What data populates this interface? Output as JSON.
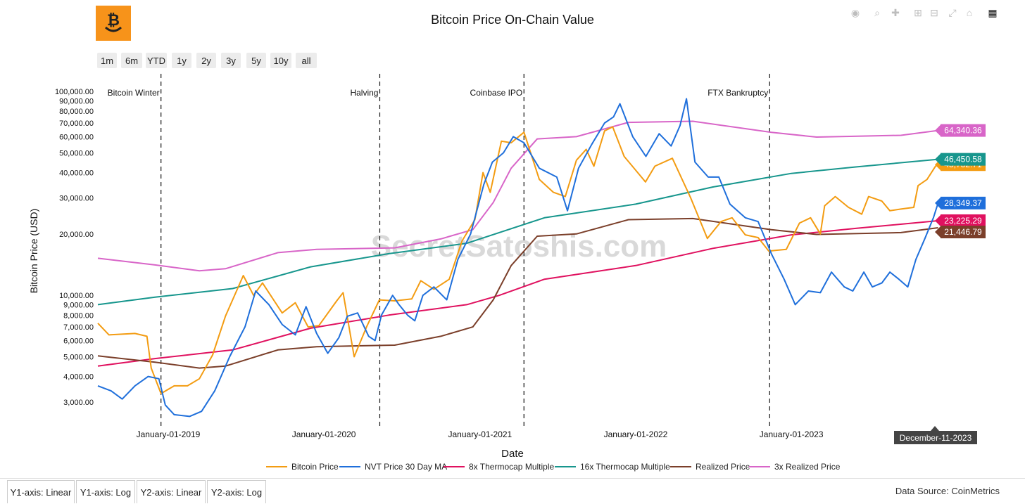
{
  "title": "Bitcoin Price On-Chain Value",
  "watermark": "SecretSatoshis.com",
  "range_buttons": [
    "1m",
    "6m",
    "YTD",
    "1y",
    "2y",
    "3y",
    "5y",
    "10y",
    "all"
  ],
  "yaxis_tabs": [
    "Y1-axis: Linear",
    "Y1-axis: Log",
    "Y2-axis: Linear",
    "Y2-axis: Log"
  ],
  "data_source": "Data Source: CoinMetrics",
  "hover_date": "December-11-2023",
  "colors": {
    "Bitcoin Price": "#f39c12",
    "NVT Price 30 Day MA": "#1f6fdb",
    "8x Thermocap Multiple": "#e0115f",
    "16x Thermocap Multiple": "#17968d",
    "Realized Price": "#7b3f2a",
    "3x Realized Price": "#d865c8"
  },
  "chart_data": {
    "type": "line",
    "title": "Bitcoin Price On-Chain Value",
    "xlabel": "Date",
    "ylabel": "Bitcoin Price (USD)",
    "yscale": "log",
    "xlim": [
      "2018-07-15",
      "2023-12-20"
    ],
    "ylim": [
      2400,
      110000
    ],
    "x_ticks": [
      "January-01-2019",
      "January-01-2020",
      "January-01-2021",
      "January-01-2022",
      "January-01-2023"
    ],
    "y_ticks": [
      "3,000.00",
      "4,000.00",
      "5,000.00",
      "6,000.00",
      "7,000.00",
      "8,000.00",
      "9,000.00",
      "10,000.00",
      "20,000.00",
      "30,000.00",
      "40,000.00",
      "50,000.00",
      "60,000.00",
      "70,000.00",
      "80,000.00",
      "90,000.00",
      "100,000.00"
    ],
    "events": [
      {
        "date": "2018-12-15",
        "label": "Bitcoin Winter"
      },
      {
        "date": "2020-05-11",
        "label": "Halving"
      },
      {
        "date": "2021-04-14",
        "label": "Coinbase IPO"
      },
      {
        "date": "2022-11-11",
        "label": "FTX Bankruptcy"
      }
    ],
    "series": [
      {
        "name": "Bitcoin Price",
        "last_value": "43,732.71",
        "points": [
          [
            "2018-07-20",
            7300
          ],
          [
            "2018-08-15",
            6400
          ],
          [
            "2018-10-15",
            6500
          ],
          [
            "2018-11-12",
            6300
          ],
          [
            "2018-11-22",
            4400
          ],
          [
            "2018-12-15",
            3300
          ],
          [
            "2019-01-15",
            3600
          ],
          [
            "2019-02-15",
            3600
          ],
          [
            "2019-03-15",
            3900
          ],
          [
            "2019-04-15",
            5100
          ],
          [
            "2019-05-15",
            7900
          ],
          [
            "2019-06-26",
            12500
          ],
          [
            "2019-07-20",
            10000
          ],
          [
            "2019-08-10",
            11500
          ],
          [
            "2019-09-25",
            8200
          ],
          [
            "2019-10-26",
            9200
          ],
          [
            "2019-11-25",
            7000
          ],
          [
            "2019-12-20",
            7100
          ],
          [
            "2020-01-31",
            9400
          ],
          [
            "2020-02-15",
            10300
          ],
          [
            "2020-03-12",
            5000
          ],
          [
            "2020-04-10",
            7000
          ],
          [
            "2020-05-10",
            9500
          ],
          [
            "2020-06-15",
            9400
          ],
          [
            "2020-07-25",
            9600
          ],
          [
            "2020-08-15",
            11800
          ],
          [
            "2020-09-15",
            10700
          ],
          [
            "2020-10-21",
            12000
          ],
          [
            "2020-11-20",
            18500
          ],
          [
            "2020-12-20",
            23500
          ],
          [
            "2021-01-08",
            40000
          ],
          [
            "2021-01-25",
            32000
          ],
          [
            "2021-02-20",
            57000
          ],
          [
            "2021-03-15",
            56000
          ],
          [
            "2021-04-14",
            63000
          ],
          [
            "2021-05-20",
            37000
          ],
          [
            "2021-06-22",
            32000
          ],
          [
            "2021-07-20",
            30500
          ],
          [
            "2021-08-15",
            46000
          ],
          [
            "2021-09-07",
            52000
          ],
          [
            "2021-09-25",
            43000
          ],
          [
            "2021-10-20",
            64000
          ],
          [
            "2021-11-08",
            67000
          ],
          [
            "2021-12-05",
            48000
          ],
          [
            "2022-01-24",
            36000
          ],
          [
            "2022-02-15",
            43000
          ],
          [
            "2022-03-28",
            47000
          ],
          [
            "2022-05-10",
            30000
          ],
          [
            "2022-06-18",
            19000
          ],
          [
            "2022-07-20",
            23000
          ],
          [
            "2022-08-15",
            24000
          ],
          [
            "2022-09-15",
            19800
          ],
          [
            "2022-10-15",
            19200
          ],
          [
            "2022-11-09",
            16500
          ],
          [
            "2022-12-20",
            16800
          ],
          [
            "2023-01-20",
            22600
          ],
          [
            "2023-02-15",
            24000
          ],
          [
            "2023-03-10",
            20000
          ],
          [
            "2023-03-20",
            27500
          ],
          [
            "2023-04-14",
            30500
          ],
          [
            "2023-05-15",
            27000
          ],
          [
            "2023-06-15",
            25000
          ],
          [
            "2023-07-01",
            30500
          ],
          [
            "2023-08-01",
            29000
          ],
          [
            "2023-08-20",
            26000
          ],
          [
            "2023-09-15",
            26500
          ],
          [
            "2023-10-15",
            27000
          ],
          [
            "2023-10-25",
            34500
          ],
          [
            "2023-11-15",
            37000
          ],
          [
            "2023-12-05",
            43000
          ],
          [
            "2023-12-11",
            43732.71
          ]
        ]
      },
      {
        "name": "NVT Price 30 Day MA",
        "last_value": "28,349.37",
        "points": [
          [
            "2018-07-20",
            3600
          ],
          [
            "2018-08-20",
            3400
          ],
          [
            "2018-09-15",
            3100
          ],
          [
            "2018-10-15",
            3600
          ],
          [
            "2018-11-15",
            4000
          ],
          [
            "2018-12-10",
            3900
          ],
          [
            "2018-12-25",
            2900
          ],
          [
            "2019-01-15",
            2600
          ],
          [
            "2019-02-20",
            2550
          ],
          [
            "2019-03-20",
            2700
          ],
          [
            "2019-04-20",
            3400
          ],
          [
            "2019-05-25",
            5000
          ],
          [
            "2019-06-30",
            7000
          ],
          [
            "2019-07-25",
            10500
          ],
          [
            "2019-08-25",
            9000
          ],
          [
            "2019-09-25",
            7200
          ],
          [
            "2019-10-26",
            6400
          ],
          [
            "2019-11-20",
            8800
          ],
          [
            "2019-12-15",
            6500
          ],
          [
            "2020-01-10",
            5200
          ],
          [
            "2020-02-05",
            6200
          ],
          [
            "2020-02-25",
            7900
          ],
          [
            "2020-03-20",
            8200
          ],
          [
            "2020-04-15",
            6300
          ],
          [
            "2020-04-30",
            6000
          ],
          [
            "2020-05-15",
            8000
          ],
          [
            "2020-06-10",
            10000
          ],
          [
            "2020-06-25",
            9000
          ],
          [
            "2020-07-15",
            8000
          ],
          [
            "2020-08-01",
            7500
          ],
          [
            "2020-08-20",
            10000
          ],
          [
            "2020-09-15",
            11000
          ],
          [
            "2020-10-15",
            9500
          ],
          [
            "2020-11-10",
            15000
          ],
          [
            "2020-12-10",
            20000
          ],
          [
            "2021-01-10",
            35000
          ],
          [
            "2021-01-30",
            45000
          ],
          [
            "2021-02-25",
            50000
          ],
          [
            "2021-03-20",
            60000
          ],
          [
            "2021-04-14",
            56000
          ],
          [
            "2021-05-20",
            42000
          ],
          [
            "2021-06-30",
            38000
          ],
          [
            "2021-07-25",
            26000
          ],
          [
            "2021-08-20",
            42000
          ],
          [
            "2021-09-20",
            55000
          ],
          [
            "2021-10-20",
            70000
          ],
          [
            "2021-11-10",
            75000
          ],
          [
            "2021-11-25",
            87000
          ],
          [
            "2021-12-25",
            60000
          ],
          [
            "2022-01-25",
            48000
          ],
          [
            "2022-02-25",
            62000
          ],
          [
            "2022-03-25",
            54000
          ],
          [
            "2022-04-15",
            68000
          ],
          [
            "2022-04-30",
            92000
          ],
          [
            "2022-05-20",
            45000
          ],
          [
            "2022-06-20",
            38000
          ],
          [
            "2022-07-15",
            38000
          ],
          [
            "2022-08-10",
            28000
          ],
          [
            "2022-09-15",
            24000
          ],
          [
            "2022-10-15",
            23000
          ],
          [
            "2022-11-15",
            16000
          ],
          [
            "2022-12-15",
            12000
          ],
          [
            "2023-01-10",
            9000
          ],
          [
            "2023-02-10",
            10500
          ],
          [
            "2023-03-10",
            10300
          ],
          [
            "2023-04-05",
            13000
          ],
          [
            "2023-05-05",
            11000
          ],
          [
            "2023-05-25",
            10500
          ],
          [
            "2023-06-20",
            13000
          ],
          [
            "2023-07-10",
            11000
          ],
          [
            "2023-08-01",
            11500
          ],
          [
            "2023-08-20",
            13000
          ],
          [
            "2023-09-10",
            12000
          ],
          [
            "2023-10-01",
            11000
          ],
          [
            "2023-10-20",
            15000
          ],
          [
            "2023-11-10",
            19000
          ],
          [
            "2023-11-30",
            24000
          ],
          [
            "2023-12-11",
            28349.37
          ]
        ]
      },
      {
        "name": "8x Thermocap Multiple",
        "last_value": "23,225.29",
        "points": [
          [
            "2018-07-20",
            4500
          ],
          [
            "2018-12-01",
            4900
          ],
          [
            "2019-06-01",
            5400
          ],
          [
            "2019-12-01",
            6900
          ],
          [
            "2020-06-01",
            8000
          ],
          [
            "2020-12-01",
            9000
          ],
          [
            "2021-02-15",
            10000
          ],
          [
            "2021-06-01",
            12000
          ],
          [
            "2022-01-01",
            14000
          ],
          [
            "2022-07-01",
            17000
          ],
          [
            "2023-01-01",
            19800
          ],
          [
            "2023-06-01",
            21300
          ],
          [
            "2023-12-11",
            23225.29
          ]
        ]
      },
      {
        "name": "16x Thermocap Multiple",
        "last_value": "46,450.58",
        "points": [
          [
            "2018-07-20",
            9000
          ],
          [
            "2018-12-01",
            9800
          ],
          [
            "2019-06-01",
            10800
          ],
          [
            "2019-12-01",
            13800
          ],
          [
            "2020-06-01",
            16000
          ],
          [
            "2020-12-01",
            18000
          ],
          [
            "2021-06-01",
            24000
          ],
          [
            "2022-01-01",
            28000
          ],
          [
            "2022-07-01",
            34000
          ],
          [
            "2023-01-01",
            39600
          ],
          [
            "2023-06-01",
            42600
          ],
          [
            "2023-12-11",
            46450.58
          ]
        ]
      },
      {
        "name": "Realized Price",
        "last_value": "21,446.79",
        "points": [
          [
            "2018-07-20",
            5050
          ],
          [
            "2018-12-01",
            4700
          ],
          [
            "2019-03-15",
            4400
          ],
          [
            "2019-05-15",
            4500
          ],
          [
            "2019-09-15",
            5400
          ],
          [
            "2019-12-15",
            5600
          ],
          [
            "2020-06-15",
            5700
          ],
          [
            "2020-10-01",
            6300
          ],
          [
            "2020-12-15",
            7000
          ],
          [
            "2021-02-01",
            9500
          ],
          [
            "2021-03-15",
            14000
          ],
          [
            "2021-05-15",
            19500
          ],
          [
            "2021-08-15",
            20000
          ],
          [
            "2021-12-15",
            23500
          ],
          [
            "2022-05-15",
            23800
          ],
          [
            "2022-11-15",
            21000
          ],
          [
            "2023-03-01",
            19900
          ],
          [
            "2023-09-15",
            20300
          ],
          [
            "2023-12-11",
            21446.79
          ]
        ]
      },
      {
        "name": "3x Realized Price",
        "last_value": "64,340.36",
        "points": [
          [
            "2018-07-20",
            15200
          ],
          [
            "2018-12-01",
            14100
          ],
          [
            "2019-03-15",
            13200
          ],
          [
            "2019-05-15",
            13500
          ],
          [
            "2019-09-15",
            16200
          ],
          [
            "2019-12-15",
            16800
          ],
          [
            "2020-06-15",
            17100
          ],
          [
            "2020-10-01",
            18900
          ],
          [
            "2020-12-15",
            21000
          ],
          [
            "2021-02-01",
            28500
          ],
          [
            "2021-03-15",
            42000
          ],
          [
            "2021-05-15",
            58500
          ],
          [
            "2021-08-15",
            60000
          ],
          [
            "2021-12-15",
            70500
          ],
          [
            "2022-05-15",
            71400
          ],
          [
            "2022-11-15",
            63000
          ],
          [
            "2023-03-01",
            59700
          ],
          [
            "2023-09-15",
            60900
          ],
          [
            "2023-12-11",
            64340.36
          ]
        ]
      }
    ]
  }
}
